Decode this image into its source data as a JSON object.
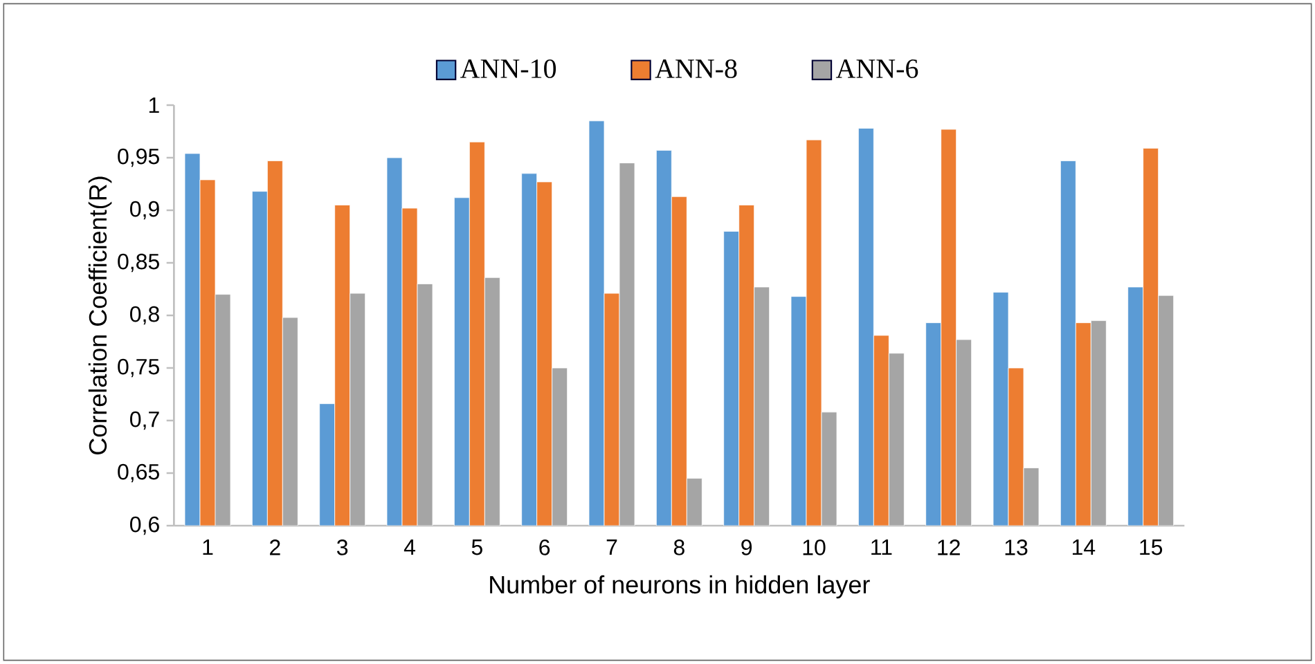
{
  "chart_data": {
    "type": "bar",
    "xlabel": "Number of neurons in hidden layer",
    "ylabel": "Correlation Coefficient(R)",
    "categories": [
      "1",
      "2",
      "3",
      "4",
      "5",
      "6",
      "7",
      "8",
      "9",
      "10",
      "11",
      "12",
      "13",
      "14",
      "15"
    ],
    "series": [
      {
        "name": "ANN-10",
        "color": "#5b9bd5",
        "values": [
          0.954,
          0.918,
          0.716,
          0.95,
          0.912,
          0.935,
          0.985,
          0.957,
          0.88,
          0.818,
          0.978,
          0.793,
          0.822,
          0.947,
          0.827
        ]
      },
      {
        "name": "ANN-8",
        "color": "#ed7d31",
        "values": [
          0.929,
          0.947,
          0.905,
          0.902,
          0.965,
          0.927,
          0.821,
          0.913,
          0.905,
          0.967,
          0.781,
          0.977,
          0.75,
          0.793,
          0.959
        ]
      },
      {
        "name": "ANN-6",
        "color": "#a5a5a5",
        "values": [
          0.82,
          0.798,
          0.821,
          0.83,
          0.836,
          0.75,
          0.945,
          0.645,
          0.827,
          0.708,
          0.764,
          0.777,
          0.655,
          0.795,
          0.819
        ]
      }
    ],
    "ylim": [
      0.6,
      1
    ],
    "yticks": [
      {
        "value": 0.6,
        "label": "0,6"
      },
      {
        "value": 0.65,
        "label": "0,65"
      },
      {
        "value": 0.7,
        "label": "0,7"
      },
      {
        "value": 0.75,
        "label": "0,75"
      },
      {
        "value": 0.8,
        "label": "0,8"
      },
      {
        "value": 0.85,
        "label": "0,85"
      },
      {
        "value": 0.9,
        "label": "0,9"
      },
      {
        "value": 0.95,
        "label": "0,95"
      },
      {
        "value": 1,
        "label": "1"
      }
    ],
    "grid": false,
    "legend": "top"
  }
}
